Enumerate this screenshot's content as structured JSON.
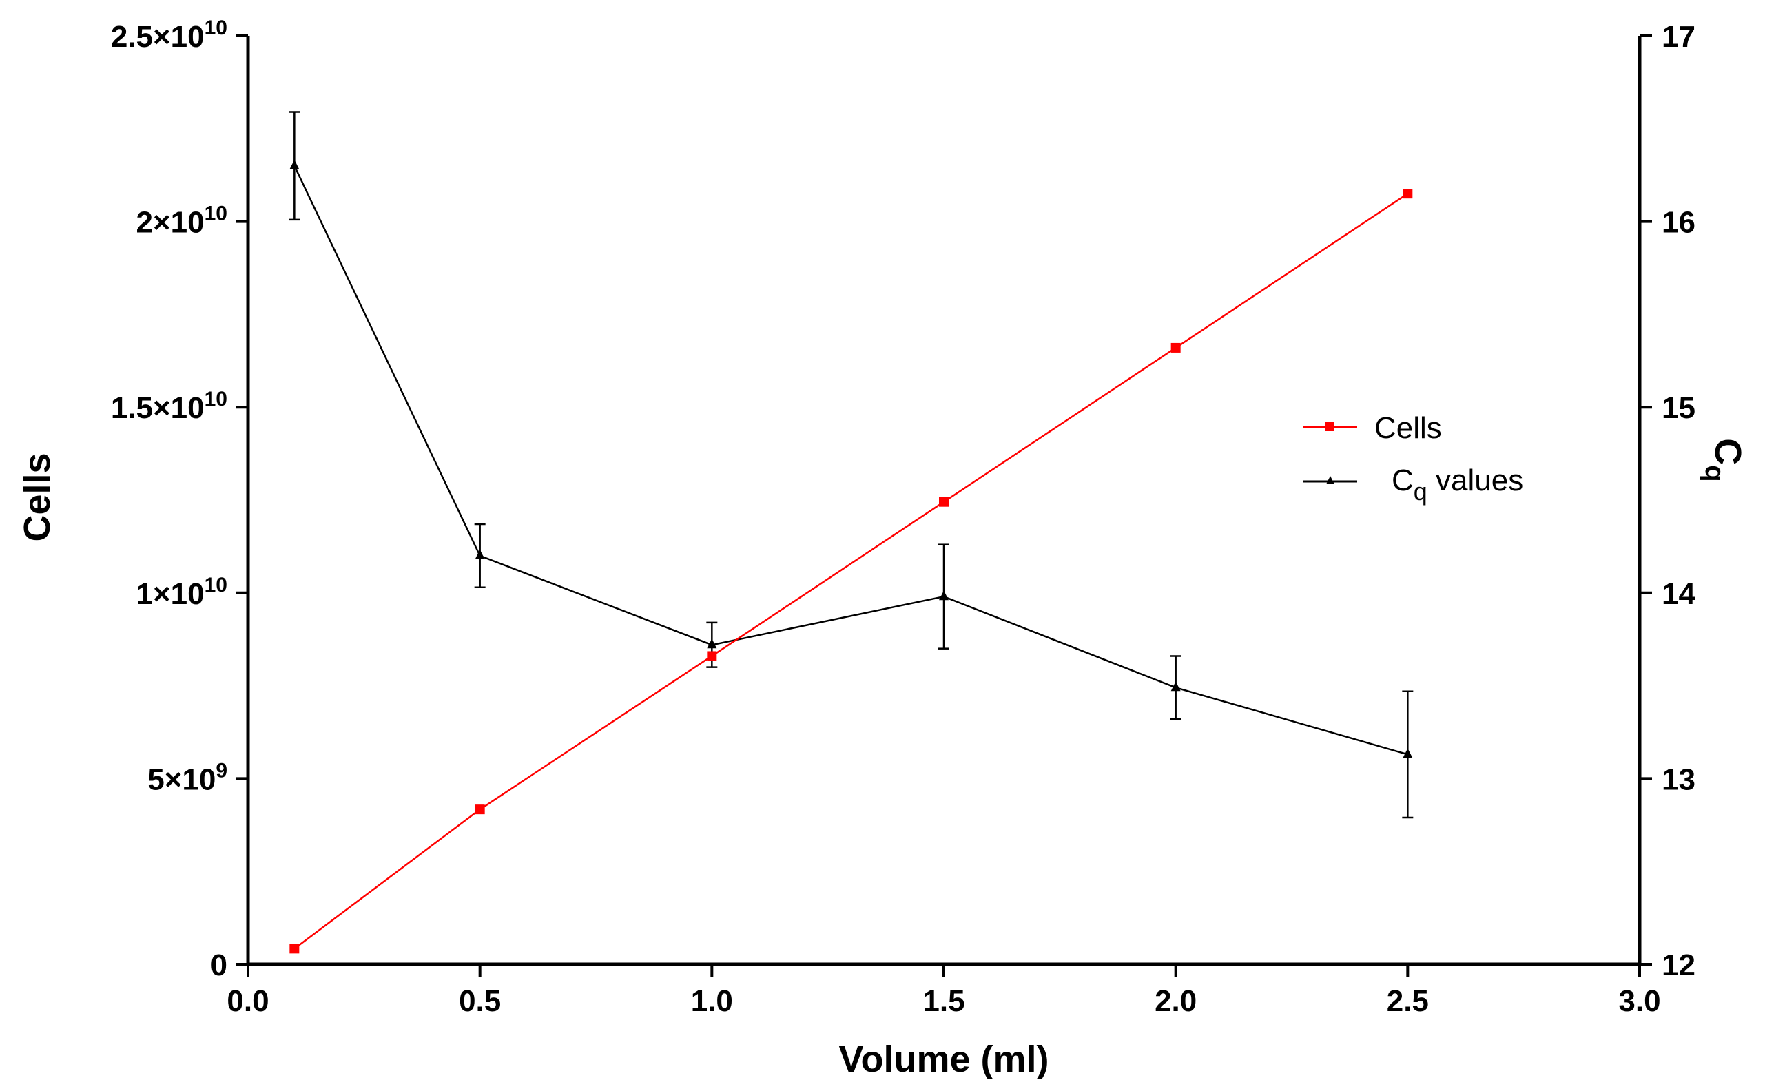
{
  "chart_data": {
    "type": "line",
    "title": "",
    "xlabel": "Volume (ml)",
    "ylabel_left": "Cells",
    "ylabel_right": "Cq",
    "xlim": [
      0,
      3
    ],
    "ylim_left": [
      0,
      25000000000
    ],
    "ylim_right": [
      12,
      17
    ],
    "x_ticks": [
      "0.0",
      "0.5",
      "1.0",
      "1.5",
      "2.0",
      "2.5",
      "3.0"
    ],
    "y_left_ticks": [
      {
        "mantissa": "0",
        "exponent": ""
      },
      {
        "mantissa": "5×10",
        "exponent": "9"
      },
      {
        "mantissa": "1×10",
        "exponent": "10"
      },
      {
        "mantissa": "1.5×10",
        "exponent": "10"
      },
      {
        "mantissa": "2×10",
        "exponent": "10"
      },
      {
        "mantissa": "2.5×10",
        "exponent": "10"
      }
    ],
    "y_right_ticks": [
      "12",
      "13",
      "14",
      "15",
      "16",
      "17"
    ],
    "series": [
      {
        "name": "Cells",
        "axis": "left",
        "color": "#ff0000",
        "marker": "square",
        "x": [
          0.1,
          0.5,
          1.0,
          1.5,
          2.0,
          2.5
        ],
        "values": [
          420000000,
          4170000000,
          8300000000,
          12450000000,
          16600000000,
          20750000000
        ]
      },
      {
        "name": "Cq values",
        "axis": "right",
        "color": "#000000",
        "marker": "triangle",
        "x": [
          0.1,
          0.5,
          1.0,
          1.5,
          2.0,
          2.5
        ],
        "values": [
          16.3,
          14.2,
          13.72,
          13.98,
          13.49,
          13.13
        ],
        "error": [
          0.29,
          0.17,
          0.12,
          0.28,
          0.17,
          0.34
        ]
      }
    ],
    "legend": {
      "position": "center-right",
      "entries": [
        {
          "label": "Cells",
          "subscript": ""
        },
        {
          "label": "C",
          "subscript": "q",
          "suffix": " values"
        }
      ]
    }
  }
}
